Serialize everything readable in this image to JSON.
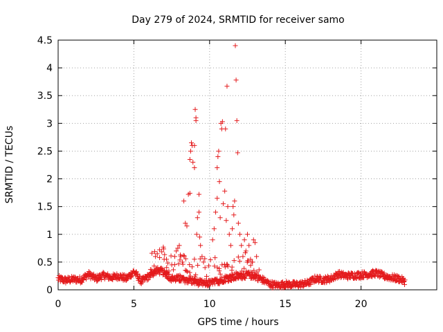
{
  "chart_data": {
    "type": "scatter",
    "title": "Day 279 of 2024, SRMTID for receiver samo",
    "xlabel": "GPS time / hours",
    "ylabel": "SRMTID / TECUs",
    "xlim": [
      0,
      25
    ],
    "ylim": [
      0,
      4.5
    ],
    "xticks": [
      0,
      5,
      10,
      15,
      20
    ],
    "xtick_labels": [
      "0",
      "5",
      "10",
      "15",
      "20"
    ],
    "yticks": [
      0,
      0.5,
      1,
      1.5,
      2,
      2.5,
      3,
      3.5,
      4,
      4.5
    ],
    "ytick_labels": [
      "0",
      "0.5",
      "1",
      "1.5",
      "2",
      "2.5",
      "3",
      "3.5",
      "4",
      "4.5"
    ],
    "grid": true,
    "marker": "+",
    "color": "#e41a1c",
    "series": [
      {
        "name": "SRMTID",
        "baseline_profile": {
          "x": [
            0,
            0.5,
            1,
            1.5,
            2,
            2.5,
            3,
            3.5,
            4,
            4.5,
            5,
            5.5,
            6,
            6.5,
            7,
            7.5,
            8,
            8.5,
            9,
            9.5,
            10,
            10.5,
            11,
            11.5,
            12,
            12.5,
            13,
            13.5,
            14,
            14.5,
            15,
            15.5,
            16,
            16.5,
            17,
            17.5,
            18,
            18.5,
            19,
            19.5,
            20,
            20.5,
            21,
            21.5,
            22,
            22.5,
            22.9
          ],
          "y": [
            0.2,
            0.17,
            0.19,
            0.18,
            0.28,
            0.2,
            0.26,
            0.22,
            0.25,
            0.2,
            0.33,
            0.15,
            0.25,
            0.35,
            0.32,
            0.2,
            0.2,
            0.18,
            0.15,
            0.12,
            0.12,
            0.15,
            0.2,
            0.22,
            0.25,
            0.27,
            0.25,
            0.18,
            0.1,
            0.08,
            0.1,
            0.09,
            0.1,
            0.12,
            0.2,
            0.18,
            0.2,
            0.28,
            0.25,
            0.26,
            0.27,
            0.28,
            0.3,
            0.25,
            0.22,
            0.2,
            0.15
          ]
        },
        "points": [
          {
            "x": 6.7,
            "y": 0.58
          },
          {
            "x": 7.0,
            "y": 0.55
          },
          {
            "x": 7.5,
            "y": 0.45
          },
          {
            "x": 7.7,
            "y": 0.6
          },
          {
            "x": 7.8,
            "y": 0.7
          },
          {
            "x": 7.9,
            "y": 0.75
          },
          {
            "x": 8.0,
            "y": 0.8
          },
          {
            "x": 8.1,
            "y": 0.6
          },
          {
            "x": 8.2,
            "y": 0.5
          },
          {
            "x": 8.3,
            "y": 1.6
          },
          {
            "x": 8.4,
            "y": 1.2
          },
          {
            "x": 8.5,
            "y": 1.15
          },
          {
            "x": 8.6,
            "y": 1.72
          },
          {
            "x": 8.7,
            "y": 1.74
          },
          {
            "x": 8.7,
            "y": 2.35
          },
          {
            "x": 8.75,
            "y": 2.5
          },
          {
            "x": 8.8,
            "y": 2.65
          },
          {
            "x": 8.85,
            "y": 2.6
          },
          {
            "x": 8.9,
            "y": 2.3
          },
          {
            "x": 9.0,
            "y": 2.2
          },
          {
            "x": 9.0,
            "y": 2.6
          },
          {
            "x": 9.05,
            "y": 3.25
          },
          {
            "x": 9.1,
            "y": 3.1
          },
          {
            "x": 9.1,
            "y": 3.05
          },
          {
            "x": 9.15,
            "y": 1.0
          },
          {
            "x": 9.2,
            "y": 1.3
          },
          {
            "x": 9.3,
            "y": 1.72
          },
          {
            "x": 9.3,
            "y": 1.4
          },
          {
            "x": 9.35,
            "y": 0.95
          },
          {
            "x": 9.4,
            "y": 0.8
          },
          {
            "x": 9.5,
            "y": 0.6
          },
          {
            "x": 9.6,
            "y": 0.5
          },
          {
            "x": 9.7,
            "y": 0.4
          },
          {
            "x": 10.2,
            "y": 0.9
          },
          {
            "x": 10.3,
            "y": 1.1
          },
          {
            "x": 10.4,
            "y": 1.4
          },
          {
            "x": 10.5,
            "y": 1.65
          },
          {
            "x": 10.5,
            "y": 2.2
          },
          {
            "x": 10.55,
            "y": 2.4
          },
          {
            "x": 10.6,
            "y": 2.5
          },
          {
            "x": 10.65,
            "y": 1.95
          },
          {
            "x": 10.7,
            "y": 1.3
          },
          {
            "x": 10.75,
            "y": 3.0
          },
          {
            "x": 10.8,
            "y": 2.9
          },
          {
            "x": 10.85,
            "y": 3.03
          },
          {
            "x": 10.9,
            "y": 1.55
          },
          {
            "x": 11.0,
            "y": 1.78
          },
          {
            "x": 11.05,
            "y": 2.9
          },
          {
            "x": 11.1,
            "y": 1.25
          },
          {
            "x": 11.15,
            "y": 3.67
          },
          {
            "x": 11.2,
            "y": 1.5
          },
          {
            "x": 11.3,
            "y": 1.0
          },
          {
            "x": 11.4,
            "y": 0.8
          },
          {
            "x": 11.5,
            "y": 1.1
          },
          {
            "x": 11.55,
            "y": 1.5
          },
          {
            "x": 11.6,
            "y": 1.35
          },
          {
            "x": 11.65,
            "y": 1.6
          },
          {
            "x": 11.7,
            "y": 4.4
          },
          {
            "x": 11.75,
            "y": 3.78
          },
          {
            "x": 11.8,
            "y": 3.05
          },
          {
            "x": 11.85,
            "y": 2.47
          },
          {
            "x": 11.9,
            "y": 1.2
          },
          {
            "x": 12.0,
            "y": 1.0
          },
          {
            "x": 12.1,
            "y": 0.8
          },
          {
            "x": 12.2,
            "y": 0.6
          },
          {
            "x": 12.3,
            "y": 0.9
          },
          {
            "x": 12.4,
            "y": 0.7
          },
          {
            "x": 12.5,
            "y": 1.0
          },
          {
            "x": 12.6,
            "y": 0.8
          },
          {
            "x": 12.7,
            "y": 0.55
          },
          {
            "x": 12.8,
            "y": 0.5
          },
          {
            "x": 12.9,
            "y": 0.9
          },
          {
            "x": 13.0,
            "y": 0.85
          },
          {
            "x": 13.1,
            "y": 0.6
          }
        ]
      }
    ]
  }
}
